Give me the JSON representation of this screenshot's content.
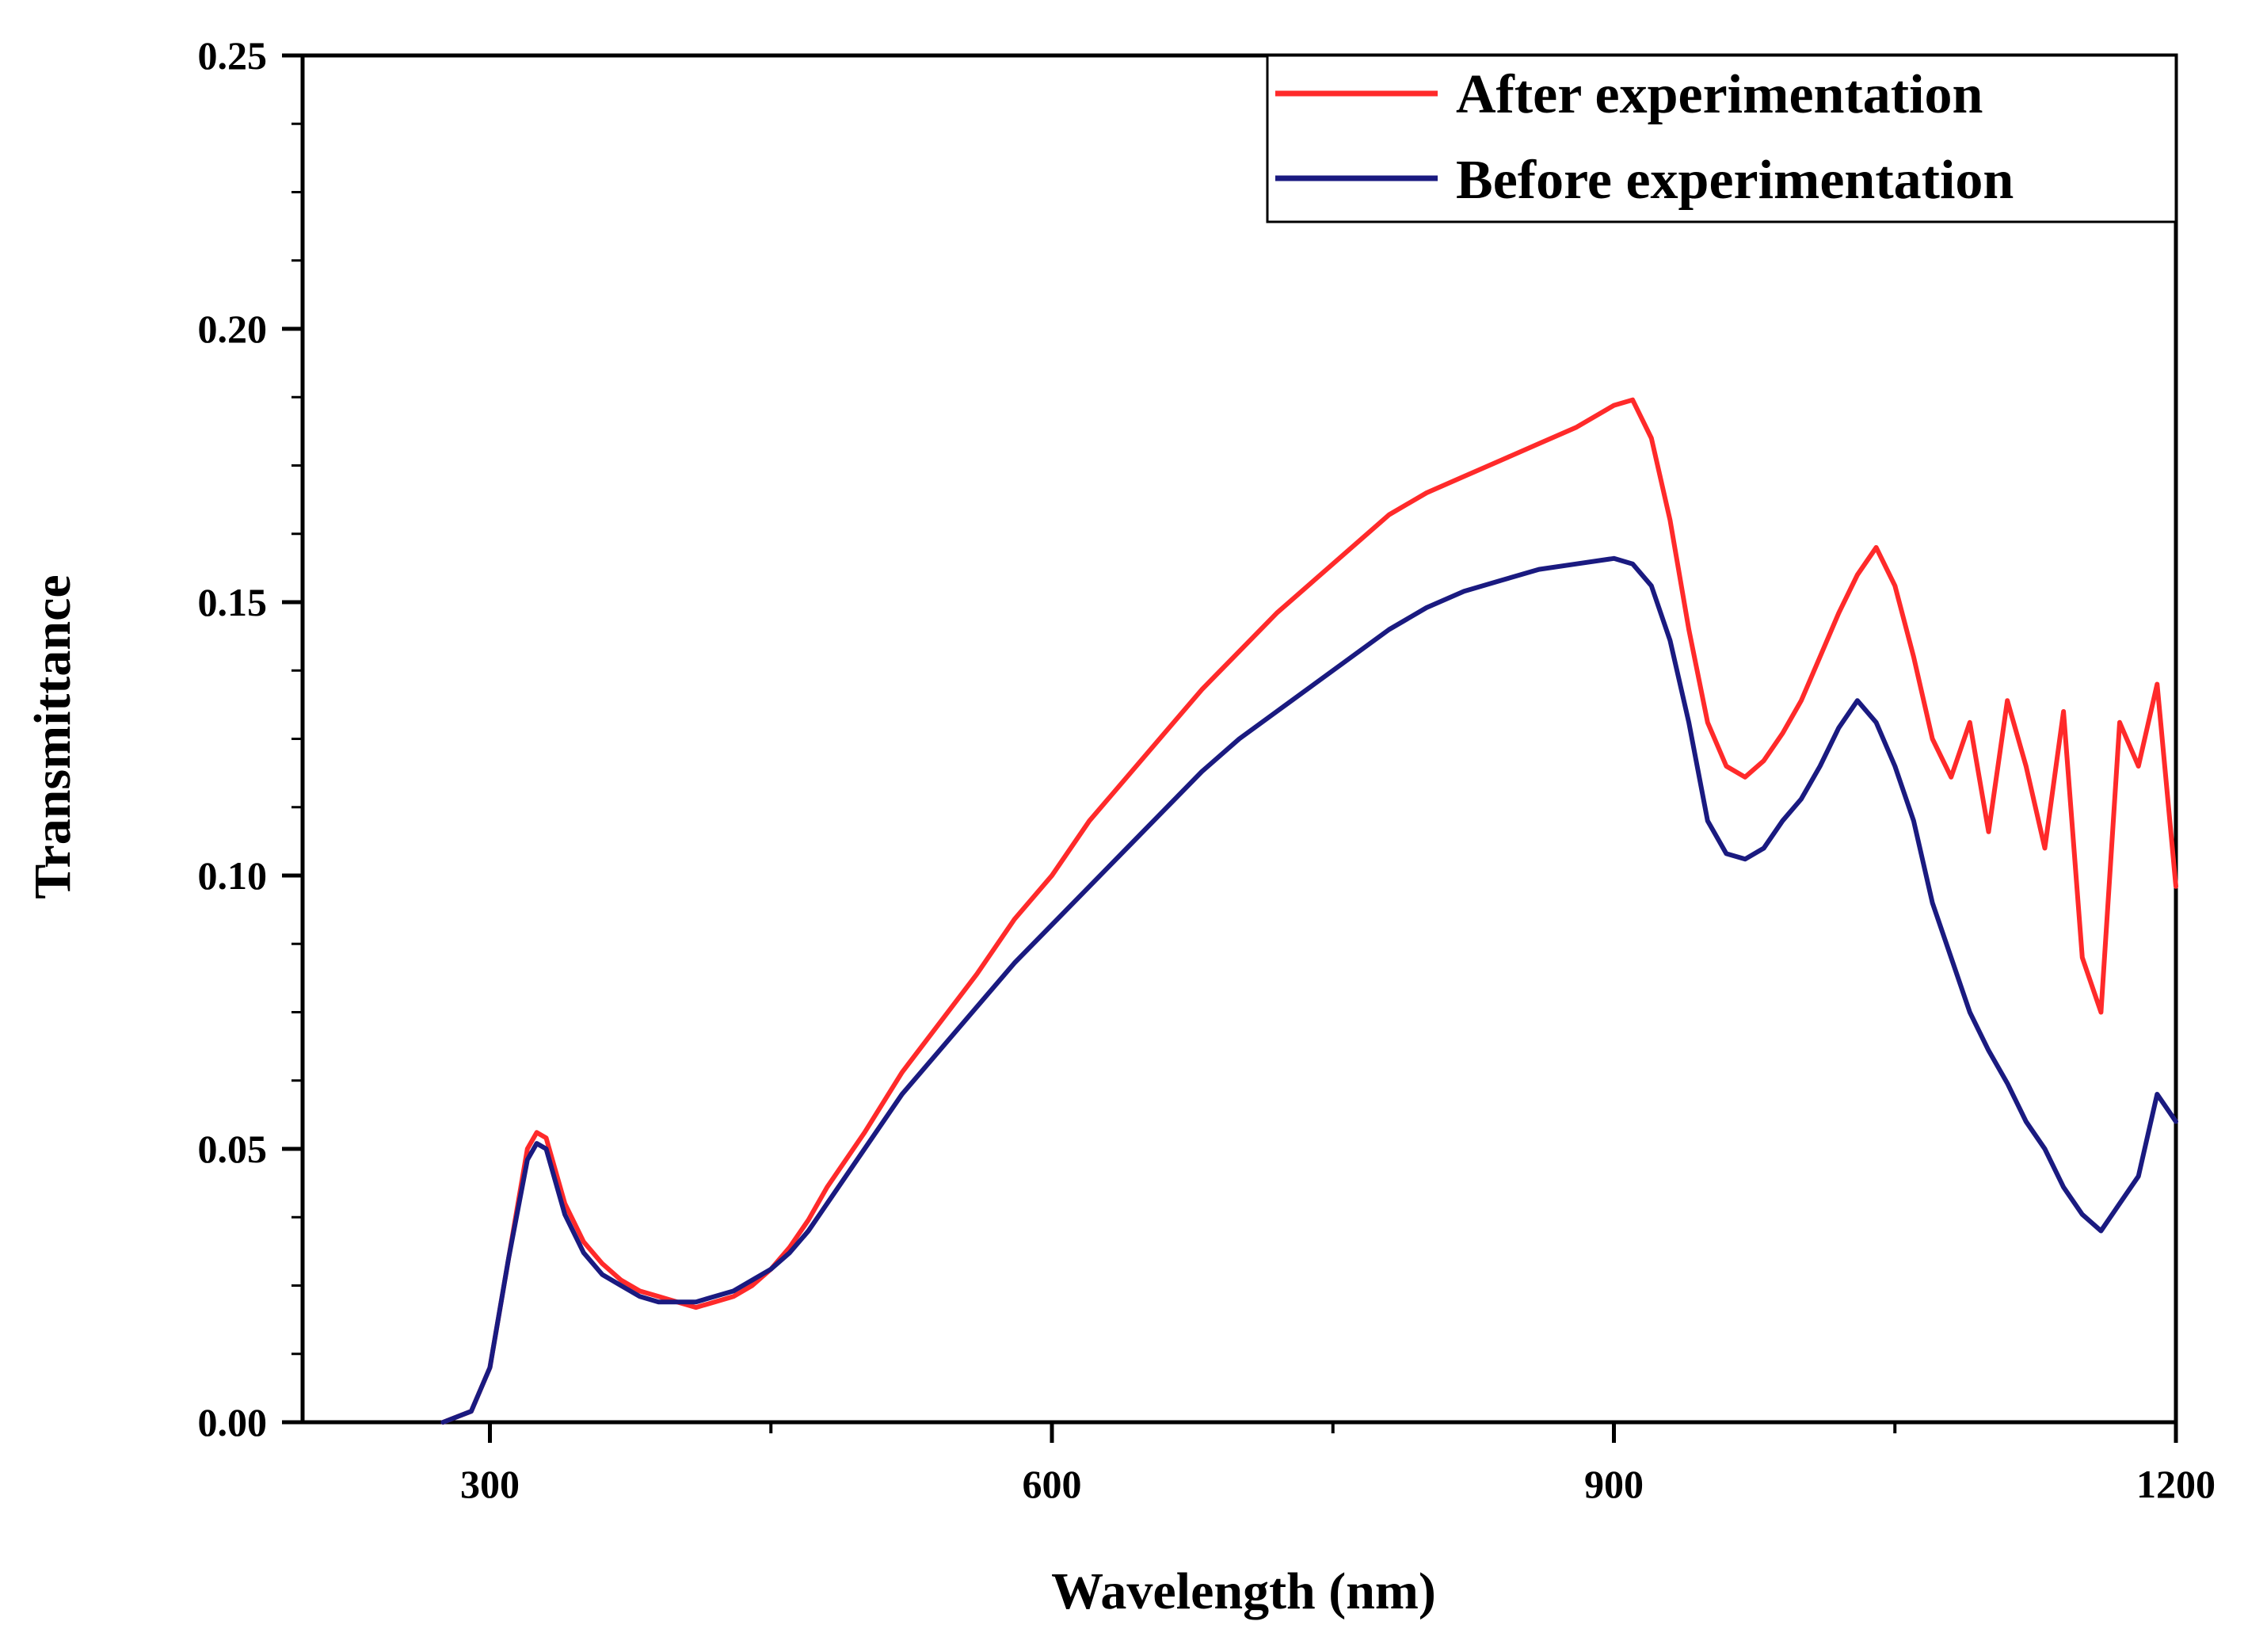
{
  "chart_data": {
    "type": "line",
    "title": "",
    "xlabel": "Wavelength (nm)",
    "ylabel": "Transmittance",
    "xlim": [
      200,
      1200
    ],
    "ylim": [
      0.0,
      0.25
    ],
    "x_ticks": [
      300,
      600,
      900,
      1200
    ],
    "x_tick_labels": [
      "300",
      "600",
      "900",
      "1200"
    ],
    "x_minor_ticks": [
      300,
      450,
      600,
      750,
      900,
      1050,
      1200
    ],
    "y_ticks": [
      0.0,
      0.05,
      0.1,
      0.15,
      0.2,
      0.25
    ],
    "y_tick_labels": [
      "0.00",
      "0.05",
      "0.10",
      "0.15",
      "0.20",
      "0.25"
    ],
    "grid": false,
    "legend_position": "top-right",
    "series": [
      {
        "name": "After experimentation",
        "color": "#ff2a2a",
        "x": [
          275,
          290,
          300,
          310,
          320,
          325,
          330,
          335,
          340,
          350,
          360,
          370,
          380,
          390,
          400,
          410,
          420,
          430,
          440,
          450,
          460,
          470,
          480,
          500,
          520,
          540,
          560,
          580,
          600,
          620,
          640,
          660,
          680,
          700,
          720,
          740,
          760,
          780,
          800,
          820,
          840,
          860,
          880,
          900,
          910,
          920,
          930,
          940,
          950,
          960,
          970,
          980,
          990,
          1000,
          1010,
          1020,
          1030,
          1040,
          1050,
          1060,
          1070,
          1080,
          1090,
          1100,
          1110,
          1120,
          1130,
          1140,
          1150,
          1160,
          1170,
          1180,
          1190,
          1200
        ],
        "values": [
          0.0,
          0.002,
          0.01,
          0.03,
          0.05,
          0.053,
          0.052,
          0.046,
          0.04,
          0.033,
          0.029,
          0.026,
          0.024,
          0.023,
          0.022,
          0.021,
          0.022,
          0.023,
          0.025,
          0.028,
          0.032,
          0.037,
          0.043,
          0.053,
          0.064,
          0.073,
          0.082,
          0.092,
          0.1,
          0.11,
          0.118,
          0.126,
          0.134,
          0.141,
          0.148,
          0.154,
          0.16,
          0.166,
          0.17,
          0.173,
          0.176,
          0.179,
          0.182,
          0.186,
          0.187,
          0.18,
          0.165,
          0.145,
          0.128,
          0.12,
          0.118,
          0.121,
          0.126,
          0.132,
          0.14,
          0.148,
          0.155,
          0.16,
          0.153,
          0.14,
          0.125,
          0.118,
          0.128,
          0.108,
          0.132,
          0.12,
          0.105,
          0.13,
          0.085,
          0.075,
          0.128,
          0.12,
          0.135,
          0.098
        ]
      },
      {
        "name": "Before experimentation",
        "color": "#1a1a80",
        "x": [
          275,
          290,
          300,
          310,
          320,
          325,
          330,
          335,
          340,
          350,
          360,
          370,
          380,
          390,
          400,
          410,
          420,
          430,
          440,
          450,
          460,
          470,
          480,
          500,
          520,
          540,
          560,
          580,
          600,
          620,
          640,
          660,
          680,
          700,
          720,
          740,
          760,
          780,
          800,
          820,
          840,
          860,
          880,
          900,
          910,
          920,
          930,
          940,
          950,
          960,
          970,
          980,
          990,
          1000,
          1010,
          1020,
          1030,
          1040,
          1050,
          1060,
          1070,
          1080,
          1090,
          1100,
          1110,
          1120,
          1130,
          1140,
          1150,
          1160,
          1170,
          1180,
          1190,
          1200
        ],
        "values": [
          0.0,
          0.002,
          0.01,
          0.03,
          0.048,
          0.051,
          0.05,
          0.044,
          0.038,
          0.031,
          0.027,
          0.025,
          0.023,
          0.022,
          0.022,
          0.022,
          0.023,
          0.024,
          0.026,
          0.028,
          0.031,
          0.035,
          0.04,
          0.05,
          0.06,
          0.068,
          0.076,
          0.084,
          0.091,
          0.098,
          0.105,
          0.112,
          0.119,
          0.125,
          0.13,
          0.135,
          0.14,
          0.145,
          0.149,
          0.152,
          0.154,
          0.156,
          0.157,
          0.158,
          0.157,
          0.153,
          0.143,
          0.128,
          0.11,
          0.104,
          0.103,
          0.105,
          0.11,
          0.114,
          0.12,
          0.127,
          0.132,
          0.128,
          0.12,
          0.11,
          0.095,
          0.085,
          0.075,
          0.068,
          0.062,
          0.055,
          0.05,
          0.043,
          0.038,
          0.035,
          0.04,
          0.045,
          0.06,
          0.055
        ]
      }
    ]
  }
}
